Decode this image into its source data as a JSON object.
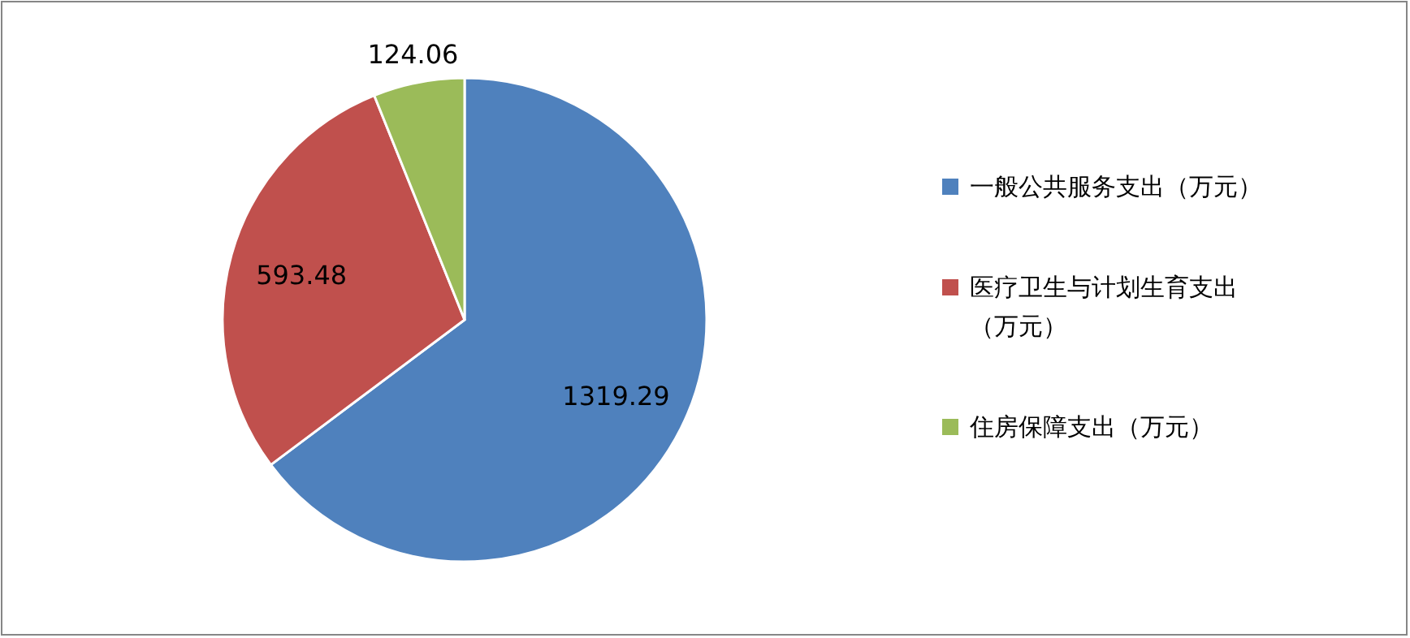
{
  "chart_data": {
    "type": "pie",
    "categories": [
      "一般公共服务支出（万元）",
      "医疗卫生与计划生育支出（万元）",
      "住房保障支出（万元）"
    ],
    "values": [
      1319.29,
      593.48,
      124.06
    ],
    "colors": [
      "#4f81bd",
      "#c0504d",
      "#9bbb59"
    ],
    "data_labels": true,
    "legend": "right"
  }
}
